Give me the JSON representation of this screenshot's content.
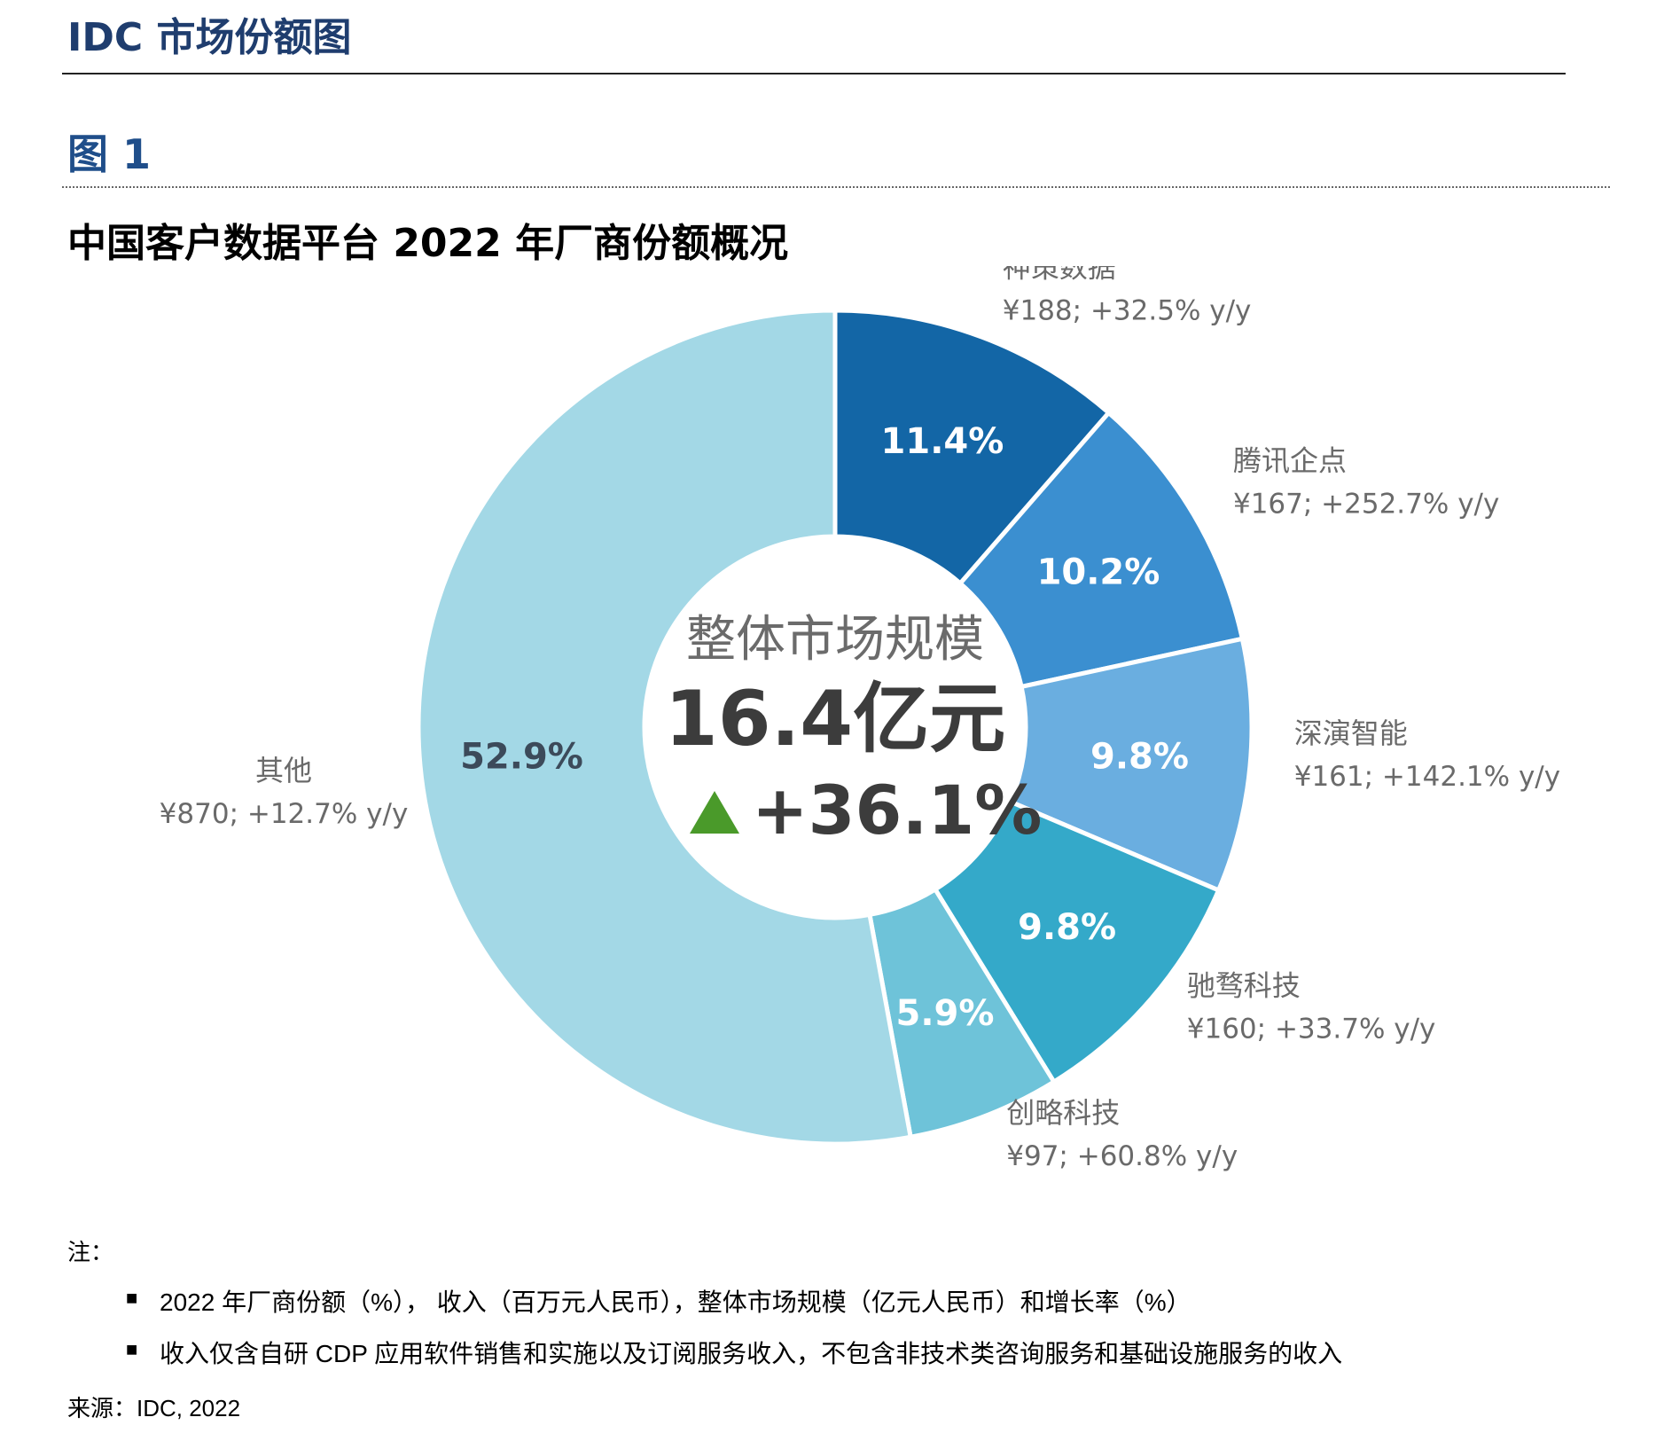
{
  "header": {
    "title": "IDC 市场份额图"
  },
  "figure": {
    "number": "图 1",
    "title": "中国客户数据平台 2022 年厂商份额概况"
  },
  "chart_data": {
    "type": "pie",
    "colors": [
      "#1366a6",
      "#3b8fd0",
      "#6aaee0",
      "#34a9c9",
      "#6ec3d9",
      "#a3d8e6"
    ],
    "slices": [
      {
        "name": "神策数据",
        "share": 11.4,
        "share_label": "11.4%",
        "detail": "¥188; +32.5% y/y"
      },
      {
        "name": "腾讯企点",
        "share": 10.2,
        "share_label": "10.2%",
        "detail": "¥167; +252.7% y/y"
      },
      {
        "name": "深演智能",
        "share": 9.8,
        "share_label": "9.8%",
        "detail": "¥161; +142.1% y/y"
      },
      {
        "name": "驰骛科技",
        "share": 9.8,
        "share_label": "9.8%",
        "detail": "¥160; +33.7% y/y"
      },
      {
        "name": "创略科技",
        "share": 5.9,
        "share_label": "5.9%",
        "detail": "¥97; +60.8% y/y"
      },
      {
        "name": "其他",
        "share": 52.9,
        "share_label": "52.9%",
        "detail": "¥870; +12.7% y/y"
      }
    ],
    "center": {
      "line1": "整体市场规模",
      "line2": "16.4亿元",
      "growth": "+36.1%",
      "growth_icon": "up-triangle-icon",
      "growth_color": "#4a9a2a"
    }
  },
  "notes": {
    "label": "注：",
    "items": [
      "2022 年厂商份额（%），  收入（百万元人民币），整体市场规模（亿元人民币）和增长率（%）",
      "收入仅含自研 CDP 应用软件销售和实施以及订阅服务收入，不包含非技术类咨询服务和基础设施服务的收入"
    ]
  },
  "source": "来源：IDC, 2022"
}
